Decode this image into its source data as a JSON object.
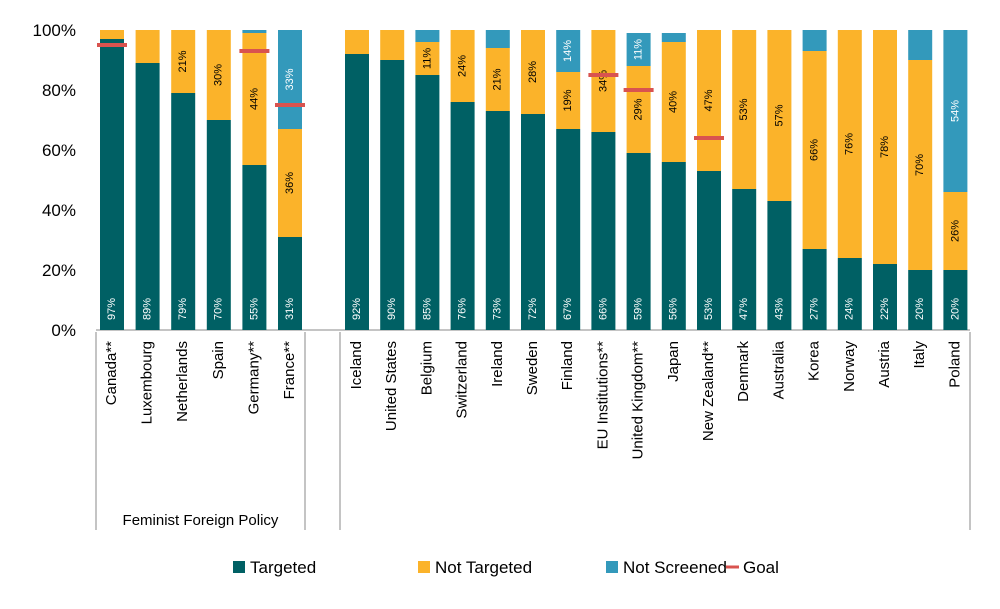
{
  "chart_data": {
    "type": "bar",
    "stacked": true,
    "categories": [
      "Canada**",
      "Luxembourg",
      "Netherlands",
      "Spain",
      "Germany**",
      "France**",
      "Iceland",
      "United States",
      "Belgium",
      "Switzerland",
      "Ireland",
      "Sweden",
      "Finland",
      "EU Institutions**",
      "United Kingdom**",
      "Japan",
      "New Zealand**",
      "Denmark",
      "Australia",
      "Korea",
      "Norway",
      "Austria",
      "Italy",
      "Poland"
    ],
    "series": [
      {
        "name": "Targeted",
        "color": "#006064",
        "values": [
          97,
          89,
          79,
          70,
          55,
          31,
          92,
          90,
          85,
          76,
          73,
          72,
          67,
          66,
          59,
          56,
          53,
          47,
          43,
          27,
          24,
          22,
          20,
          20
        ],
        "labels": [
          "97%",
          "89%",
          "79%",
          "70%",
          "55%",
          "31%",
          "92%",
          "90%",
          "85%",
          "76%",
          "73%",
          "72%",
          "67%",
          "66%",
          "59%",
          "56%",
          "53%",
          "47%",
          "43%",
          "27%",
          "24%",
          "22%",
          "20%",
          "20%"
        ]
      },
      {
        "name": "Not Targeted",
        "color": "#FBB32A",
        "values": [
          3,
          11,
          21,
          30,
          44,
          36,
          8,
          10,
          11,
          24,
          21,
          28,
          19,
          34,
          29,
          40,
          47,
          53,
          57,
          66,
          76,
          78,
          70,
          26
        ],
        "labels": [
          "",
          "",
          "21%",
          "30%",
          "44%",
          "36%",
          "",
          "",
          "11%",
          "24%",
          "21%",
          "28%",
          "19%",
          "34%",
          "29%",
          "40%",
          "47%",
          "53%",
          "57%",
          "66%",
          "76%",
          "78%",
          "70%",
          "26%"
        ]
      },
      {
        "name": "Not Screened",
        "color": "#3399BB",
        "values": [
          0,
          0,
          0,
          0,
          1,
          33,
          0,
          0,
          4,
          0,
          6,
          0,
          14,
          0,
          11,
          3,
          0,
          0,
          0,
          7,
          0,
          0,
          10,
          54
        ],
        "labels": [
          "",
          "",
          "",
          "",
          "",
          "33%",
          "",
          "",
          "",
          "",
          "",
          "",
          "14%",
          "",
          "11%",
          "",
          "",
          "",
          "",
          "",
          "",
          "",
          "",
          "54%"
        ]
      },
      {
        "name": "Goal",
        "color": "#D9534F",
        "type": "marker",
        "values": [
          95,
          null,
          null,
          null,
          93,
          75,
          null,
          null,
          null,
          null,
          null,
          null,
          null,
          85,
          80,
          null,
          64,
          null,
          null,
          null,
          null,
          null,
          null,
          null
        ]
      }
    ],
    "groups": [
      {
        "label": "Feminist Foreign Policy",
        "from": 0,
        "to": 5
      },
      {
        "label": "",
        "from": 6,
        "to": 23
      }
    ],
    "ylim": [
      0,
      100
    ],
    "yticks": [
      "0%",
      "20%",
      "40%",
      "60%",
      "80%",
      "100%"
    ],
    "legend": {
      "position": "bottom",
      "items": [
        "Targeted",
        "Not Targeted",
        "Not Screened",
        "Goal"
      ]
    }
  }
}
